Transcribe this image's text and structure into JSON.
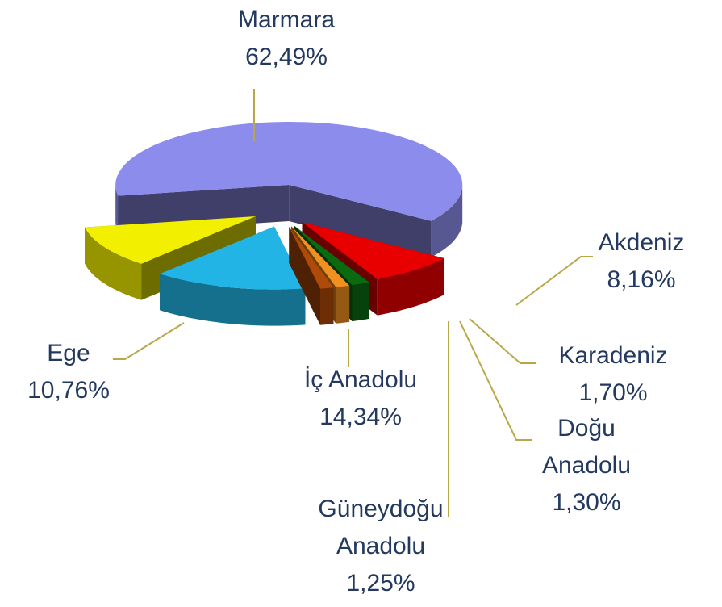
{
  "chart_data": {
    "type": "pie",
    "categories": [
      "Marmara",
      "Akdeniz",
      "Karadeniz",
      "Doğu Anadolu",
      "Güneydoğu Anadolu",
      "İç Anadolu",
      "Ege"
    ],
    "values": [
      62.49,
      8.16,
      1.7,
      1.3,
      1.25,
      14.34,
      10.76
    ],
    "value_labels": [
      "62,49%",
      "8,16%",
      "1,70%",
      "1,30%",
      "1,25%",
      "14,34%",
      "10,76%"
    ],
    "colors": [
      "#8c8cec",
      "#e80000",
      "#0a6a10",
      "#f09020",
      "#b04a08",
      "#22b4e4",
      "#f2f000"
    ]
  }
}
